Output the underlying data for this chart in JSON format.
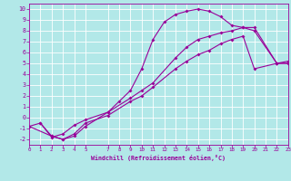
{
  "xlabel": "Windchill (Refroidissement éolien,°C)",
  "bg_color": "#b2e8e8",
  "line_color": "#990099",
  "line1_x": [
    1,
    2,
    3,
    4,
    5,
    7,
    8,
    9,
    10,
    11,
    12,
    13,
    14,
    15,
    16,
    17,
    18,
    19,
    20,
    22,
    23
  ],
  "line1_y": [
    -0.5,
    -1.7,
    -2.0,
    -1.7,
    -0.8,
    0.5,
    1.5,
    2.5,
    4.5,
    7.2,
    8.8,
    9.5,
    9.8,
    10.0,
    9.8,
    9.3,
    8.5,
    8.3,
    8.3,
    5.0,
    5.0
  ],
  "line2_x": [
    0,
    1,
    2,
    3,
    4,
    5,
    7,
    9,
    10,
    11,
    13,
    14,
    15,
    16,
    17,
    18,
    19,
    20,
    22,
    23
  ],
  "line2_y": [
    -0.8,
    -0.5,
    -1.8,
    -1.5,
    -0.7,
    -0.2,
    0.5,
    1.8,
    2.5,
    3.2,
    5.5,
    6.5,
    7.2,
    7.5,
    7.8,
    8.0,
    8.3,
    8.0,
    5.0,
    5.0
  ],
  "line3_x": [
    0,
    2,
    3,
    4,
    5,
    7,
    9,
    10,
    11,
    13,
    14,
    15,
    16,
    17,
    18,
    19,
    20,
    22,
    23
  ],
  "line3_y": [
    -0.8,
    -1.7,
    -2.0,
    -1.5,
    -0.5,
    0.2,
    1.5,
    2.0,
    2.8,
    4.5,
    5.2,
    5.8,
    6.2,
    6.8,
    7.2,
    7.5,
    4.5,
    5.0,
    5.2
  ],
  "xlim": [
    0,
    23
  ],
  "ylim": [
    -2.5,
    10.5
  ],
  "yticks": [
    -2,
    -1,
    0,
    1,
    2,
    3,
    4,
    5,
    6,
    7,
    8,
    9,
    10
  ],
  "xticks": [
    0,
    1,
    2,
    3,
    4,
    5,
    7,
    8,
    9,
    10,
    11,
    12,
    13,
    14,
    15,
    16,
    17,
    18,
    19,
    20,
    21,
    22,
    23
  ]
}
